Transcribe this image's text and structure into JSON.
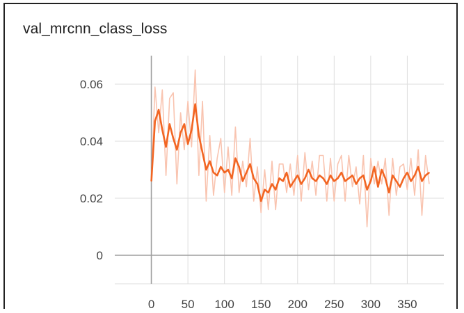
{
  "chart_data": {
    "type": "line",
    "title": "val_mrcnn_class_loss",
    "xlabel": "",
    "ylabel": "",
    "xlim": [
      -50,
      400
    ],
    "ylim": [
      -0.01,
      0.07
    ],
    "x_ticks": [
      0,
      50,
      100,
      150,
      200,
      250,
      300,
      350
    ],
    "y_ticks": [
      0,
      0.02,
      0.04,
      0.06
    ],
    "x_tick_labels": [
      "0",
      "50",
      "100",
      "150",
      "200",
      "250",
      "300",
      "350"
    ],
    "y_tick_labels": [
      "0",
      "0.02",
      "0.04",
      "0.06"
    ],
    "grid": true,
    "legend": "none",
    "colors": {
      "smoothed": "#f26522",
      "raw": "#f9c4b0",
      "grid": "#dddddd",
      "axis": "#9e9e9e"
    },
    "series": [
      {
        "x": [
          0,
          5,
          10,
          15,
          20,
          25,
          30,
          35,
          40,
          45,
          50,
          55,
          60,
          65,
          70,
          75,
          80,
          85,
          90,
          95,
          100,
          105,
          110,
          115,
          120,
          125,
          130,
          135,
          140,
          145,
          150,
          155,
          160,
          165,
          170,
          175,
          180,
          185,
          190,
          195,
          200,
          205,
          210,
          215,
          220,
          225,
          230,
          235,
          240,
          245,
          250,
          255,
          260,
          265,
          270,
          275,
          280,
          285,
          290,
          295,
          300,
          305,
          310,
          315,
          320,
          325,
          330,
          335,
          340,
          345,
          350,
          355,
          360,
          365,
          370,
          375,
          380
        ],
        "values": [
          0.026,
          0.047,
          0.051,
          0.044,
          0.038,
          0.046,
          0.041,
          0.037,
          0.043,
          0.046,
          0.039,
          0.044,
          0.053,
          0.042,
          0.036,
          0.03,
          0.033,
          0.029,
          0.028,
          0.031,
          0.029,
          0.03,
          0.027,
          0.034,
          0.031,
          0.026,
          0.029,
          0.032,
          0.027,
          0.025,
          0.019,
          0.023,
          0.022,
          0.025,
          0.023,
          0.027,
          0.026,
          0.029,
          0.024,
          0.026,
          0.028,
          0.025,
          0.027,
          0.03,
          0.027,
          0.026,
          0.028,
          0.027,
          0.025,
          0.028,
          0.026,
          0.027,
          0.029,
          0.026,
          0.027,
          0.028,
          0.025,
          0.027,
          0.028,
          0.023,
          0.026,
          0.031,
          0.024,
          0.03,
          0.027,
          0.022,
          0.028,
          0.026,
          0.024,
          0.027,
          0.029,
          0.026,
          0.028,
          0.031,
          0.026,
          0.028,
          0.029
        ]
      }
    ],
    "raw_noise": [
      0.0,
      0.012,
      -0.008,
      0.014,
      -0.01,
      0.009,
      0.016,
      -0.012,
      0.007,
      -0.009,
      0.015,
      -0.006,
      0.012,
      -0.014,
      0.018,
      -0.011,
      0.009,
      -0.008,
      0.006,
      0.01,
      -0.007,
      0.008,
      -0.006,
      0.011,
      -0.009,
      0.007,
      -0.005,
      0.009,
      -0.008,
      0.006,
      -0.004,
      0.007,
      -0.006,
      0.008,
      -0.007,
      0.005,
      0.006,
      -0.007,
      0.008,
      -0.005,
      0.007,
      -0.006,
      0.009,
      -0.007,
      0.006,
      -0.005,
      0.007,
      0.008,
      -0.006,
      0.006,
      -0.007,
      0.005,
      0.006,
      -0.007,
      0.008,
      -0.004,
      0.006,
      -0.009,
      0.007,
      -0.013,
      0.008,
      -0.006,
      0.009,
      -0.005,
      0.007,
      -0.008,
      0.006,
      -0.005,
      0.007,
      0.005,
      -0.006,
      0.008,
      -0.007,
      0.006,
      -0.012,
      0.007,
      -0.004
    ]
  }
}
